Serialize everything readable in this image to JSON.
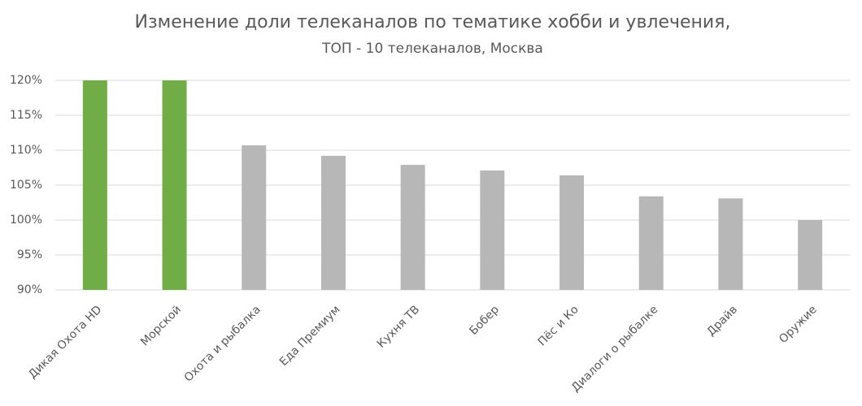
{
  "chart_data": {
    "type": "bar",
    "title": "Изменение доли телеканалов по тематике хобби и увлечения,",
    "subtitle": "ТОП - 10 телеканалов, Москва",
    "categories": [
      "Дикая Охота HD",
      "Морской",
      "Охота и рыбалка",
      "Еда Премиум",
      "Кухня ТВ",
      "Бобер",
      "Пёс и Ко",
      "Диалоги о рыбалке",
      "Драйв",
      "Оружие"
    ],
    "values": [
      120,
      120,
      110.7,
      109.2,
      107.9,
      107.1,
      106.4,
      103.4,
      103.1,
      100.0
    ],
    "colors": [
      "#70ad47",
      "#70ad47",
      "#b7b7b7",
      "#b7b7b7",
      "#b7b7b7",
      "#b7b7b7",
      "#b7b7b7",
      "#b7b7b7",
      "#b7b7b7",
      "#b7b7b7"
    ],
    "ylim": [
      90,
      120
    ],
    "yticks": [
      {
        "value": 90,
        "label": "90%"
      },
      {
        "value": 95,
        "label": "95%"
      },
      {
        "value": 100,
        "label": "100%"
      },
      {
        "value": 105,
        "label": "105%"
      },
      {
        "value": 110,
        "label": "110%"
      },
      {
        "value": 115,
        "label": "115%"
      },
      {
        "value": 120,
        "label": "120%"
      }
    ],
    "grid": true
  }
}
